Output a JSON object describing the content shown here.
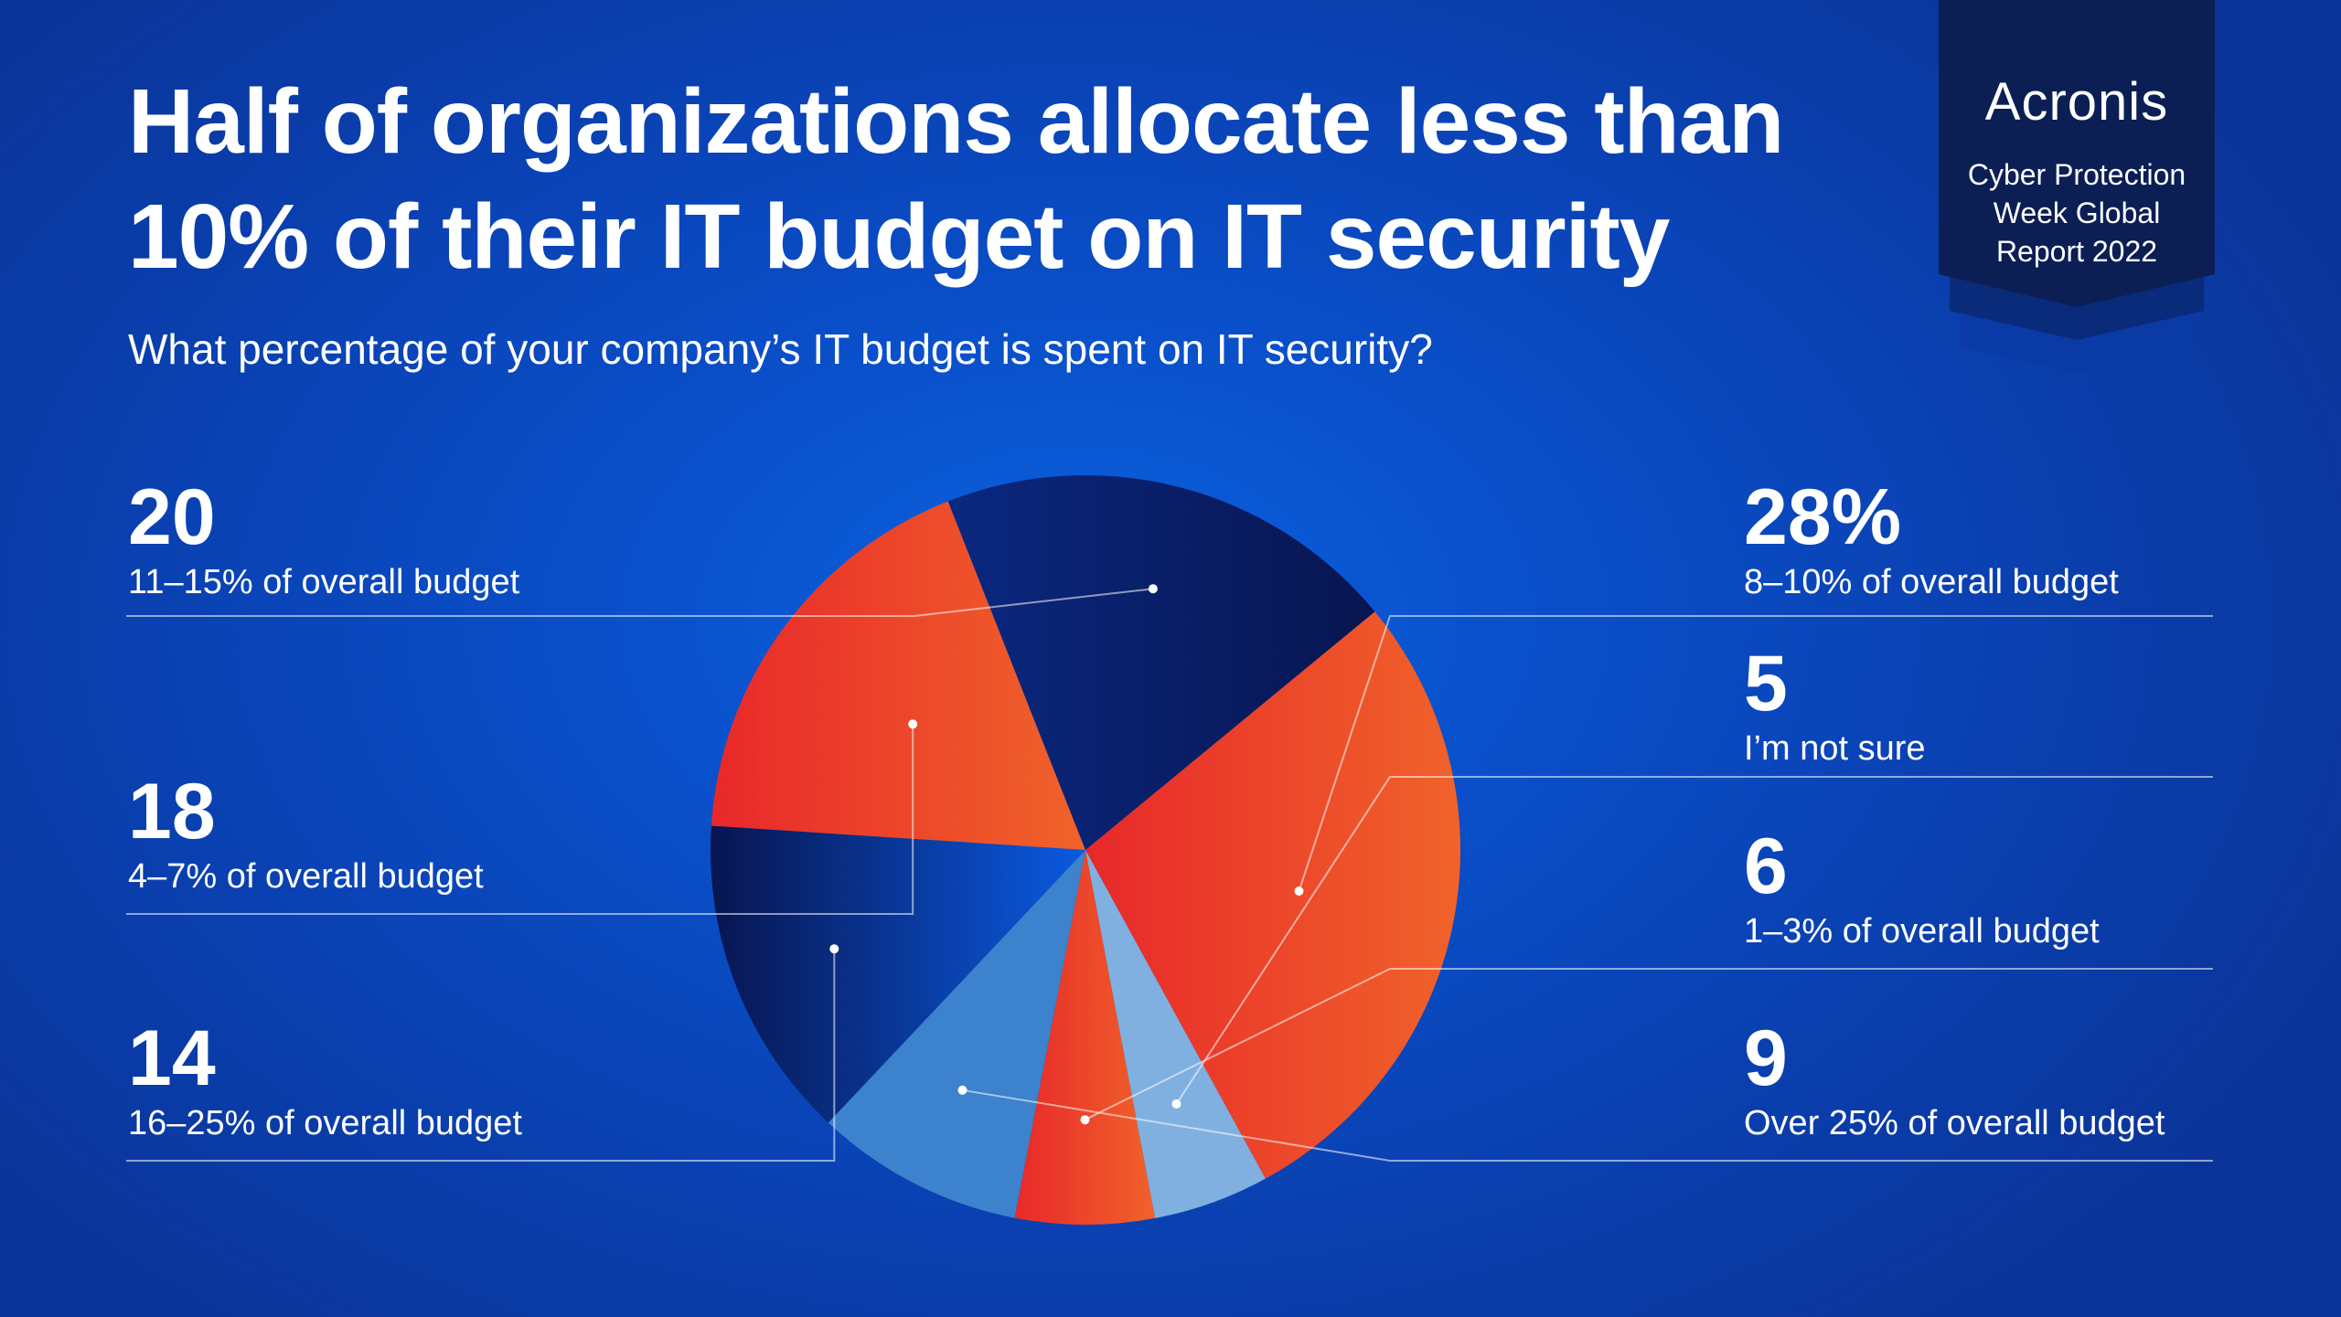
{
  "header": {
    "title_line1": "Half of organizations allocate less than",
    "title_line2": "10% of their IT budget on IT security",
    "subtitle": "What percentage of your company’s IT budget is spent on IT security?"
  },
  "badge": {
    "brand": "Acronis",
    "line1": "Cyber Protection",
    "line2": "Week Global",
    "line3": "Report 2022"
  },
  "colors": {
    "orange": "#f0632a",
    "red": "#e8282a",
    "navy": "#0a1a55",
    "light_blue": "#7fb0e0",
    "mid_blue": "#3c82cc",
    "accent_blue": "#0a5ae0"
  },
  "chart_data": {
    "type": "pie",
    "unit": "%",
    "slices": [
      {
        "value": 28,
        "value_label": "28%",
        "label": "8–10% of overall budget",
        "style": "orange"
      },
      {
        "value": 5,
        "value_label": "5",
        "label": "I’m not sure",
        "style": "light_blue"
      },
      {
        "value": 6,
        "value_label": "6",
        "label": "1–3% of overall budget",
        "style": "orange"
      },
      {
        "value": 9,
        "value_label": "9",
        "label": "Over 25% of overall budget",
        "style": "mid_blue"
      },
      {
        "value": 14,
        "value_label": "14",
        "label": "16–25% of overall budget",
        "style": "navy"
      },
      {
        "value": 18,
        "value_label": "18",
        "label": "4–7% of overall budget",
        "style": "orange"
      },
      {
        "value": 20,
        "value_label": "20",
        "label": "11–15% of overall budget",
        "style": "navy"
      }
    ]
  }
}
